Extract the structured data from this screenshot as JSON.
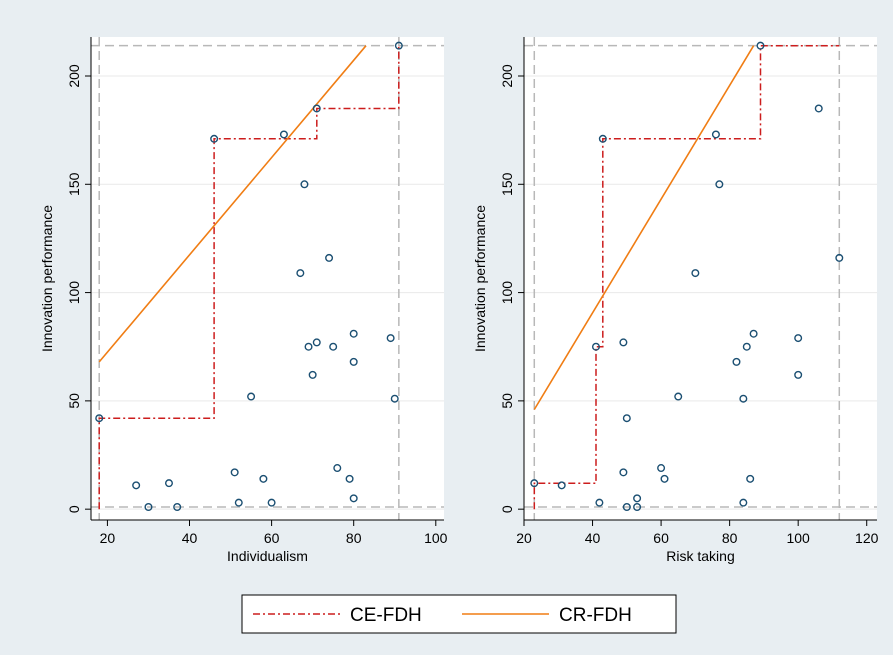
{
  "colors": {
    "background": "#e8eef2",
    "plot_bg": "#ffffff",
    "grid": "#e9e9e9",
    "ref_line": "#b8b8b8",
    "ce_fdh": "#cc1d1d",
    "cr_fdh": "#f07d14",
    "marker_edge": "#1b4f72"
  },
  "legend": {
    "items": [
      {
        "label": "CE-FDH",
        "style": "dash-dot"
      },
      {
        "label": "CR-FDH",
        "style": "solid"
      }
    ]
  },
  "chart_data": [
    {
      "type": "scatter",
      "title": "",
      "xlabel": "Individualism",
      "ylabel": "Innovation performance",
      "xlim": [
        16,
        102
      ],
      "ylim": [
        -5,
        218
      ],
      "xticks": [
        20,
        40,
        60,
        80,
        100
      ],
      "yticks": [
        0,
        50,
        100,
        150,
        200
      ],
      "grid": true,
      "reference_lines": {
        "x": [
          18,
          91
        ],
        "y": [
          1,
          214
        ]
      },
      "points": [
        {
          "x": 18,
          "y": 42
        },
        {
          "x": 27,
          "y": 11
        },
        {
          "x": 30,
          "y": 1
        },
        {
          "x": 35,
          "y": 12
        },
        {
          "x": 37,
          "y": 1
        },
        {
          "x": 46,
          "y": 171
        },
        {
          "x": 51,
          "y": 17
        },
        {
          "x": 52,
          "y": 3
        },
        {
          "x": 55,
          "y": 52
        },
        {
          "x": 58,
          "y": 14
        },
        {
          "x": 60,
          "y": 3
        },
        {
          "x": 63,
          "y": 173
        },
        {
          "x": 67,
          "y": 109
        },
        {
          "x": 68,
          "y": 150
        },
        {
          "x": 69,
          "y": 75
        },
        {
          "x": 70,
          "y": 62
        },
        {
          "x": 71,
          "y": 185
        },
        {
          "x": 71,
          "y": 77
        },
        {
          "x": 74,
          "y": 116
        },
        {
          "x": 75,
          "y": 75
        },
        {
          "x": 76,
          "y": 19
        },
        {
          "x": 79,
          "y": 14
        },
        {
          "x": 80,
          "y": 81
        },
        {
          "x": 80,
          "y": 68
        },
        {
          "x": 80,
          "y": 5
        },
        {
          "x": 89,
          "y": 79
        },
        {
          "x": 90,
          "y": 51
        },
        {
          "x": 91,
          "y": 214
        }
      ],
      "series": [
        {
          "name": "CE-FDH",
          "kind": "step",
          "x": [
            18,
            18,
            46,
            46,
            71,
            71,
            91,
            91
          ],
          "y": [
            0,
            42,
            42,
            171,
            171,
            185,
            185,
            214
          ]
        },
        {
          "name": "CR-FDH",
          "kind": "line",
          "x": [
            18,
            83
          ],
          "y": [
            68,
            214
          ]
        }
      ]
    },
    {
      "type": "scatter",
      "title": "",
      "xlabel": "Risk taking",
      "ylabel": "Innovation performance",
      "xlim": [
        20,
        123
      ],
      "ylim": [
        -5,
        218
      ],
      "xticks": [
        20,
        40,
        60,
        80,
        100,
        120
      ],
      "yticks": [
        0,
        50,
        100,
        150,
        200
      ],
      "grid": true,
      "reference_lines": {
        "x": [
          23,
          112
        ],
        "y": [
          1,
          214
        ]
      },
      "points": [
        {
          "x": 23,
          "y": 12
        },
        {
          "x": 31,
          "y": 11
        },
        {
          "x": 41,
          "y": 75
        },
        {
          "x": 42,
          "y": 3
        },
        {
          "x": 43,
          "y": 171
        },
        {
          "x": 49,
          "y": 77
        },
        {
          "x": 49,
          "y": 17
        },
        {
          "x": 50,
          "y": 42
        },
        {
          "x": 50,
          "y": 1
        },
        {
          "x": 53,
          "y": 5
        },
        {
          "x": 53,
          "y": 1
        },
        {
          "x": 60,
          "y": 19
        },
        {
          "x": 61,
          "y": 14
        },
        {
          "x": 65,
          "y": 52
        },
        {
          "x": 70,
          "y": 109
        },
        {
          "x": 76,
          "y": 173
        },
        {
          "x": 77,
          "y": 150
        },
        {
          "x": 82,
          "y": 68
        },
        {
          "x": 84,
          "y": 51
        },
        {
          "x": 84,
          "y": 3
        },
        {
          "x": 85,
          "y": 75
        },
        {
          "x": 86,
          "y": 14
        },
        {
          "x": 87,
          "y": 81
        },
        {
          "x": 89,
          "y": 214
        },
        {
          "x": 100,
          "y": 79
        },
        {
          "x": 100,
          "y": 62
        },
        {
          "x": 106,
          "y": 185
        },
        {
          "x": 112,
          "y": 116
        }
      ],
      "series": [
        {
          "name": "CE-FDH",
          "kind": "step",
          "x": [
            23,
            23,
            41,
            41,
            43,
            43,
            89,
            89,
            112
          ],
          "y": [
            0,
            12,
            12,
            75,
            75,
            171,
            171,
            214,
            214
          ]
        },
        {
          "name": "CR-FDH",
          "kind": "line",
          "x": [
            23,
            87
          ],
          "y": [
            46,
            214
          ]
        }
      ]
    }
  ]
}
